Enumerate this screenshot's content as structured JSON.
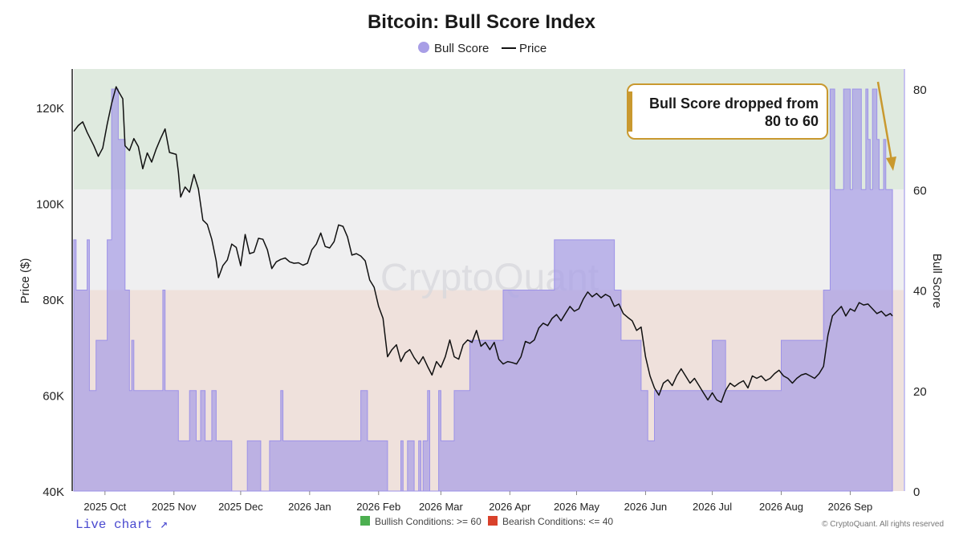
{
  "colors": {
    "bull_fill": "#a89ee6",
    "bull_stroke": "#9d92e8",
    "price_line": "#111111",
    "bullish_zone": "#dfeadf",
    "neutral_zone": "#efeff0",
    "bearish_zone": "#efe1dc",
    "annotation": "#c9992f",
    "legend_green": "#4caf50",
    "legend_red": "#d9412b"
  },
  "footer": {
    "live_chart": "Live chart ↗",
    "copyright": "© CryptoQuant. All rights reserved"
  },
  "chart_data": {
    "type": "area",
    "title": "Bitcoin: Bull Score Index",
    "watermark": "CryptoQuant",
    "legend": [
      {
        "name": "Bull Score",
        "marker": "circle"
      },
      {
        "name": "Price",
        "marker": "line"
      }
    ],
    "zone_legend": [
      "Bullish Conditions: >= 60",
      "Bearish Conditions: <= 40"
    ],
    "annotation": {
      "line1": "Bull Score dropped from",
      "line2": "80 to 60"
    },
    "y_left": {
      "label": "Price ($)",
      "ylim": [
        40000,
        128000
      ],
      "ticks": [
        40000,
        60000,
        80000,
        100000,
        120000
      ],
      "tick_labels": [
        "40K",
        "60K",
        "80K",
        "100K",
        "120K"
      ]
    },
    "y_right": {
      "label": "Bull Score",
      "ylim": [
        0,
        84
      ],
      "ticks": [
        0,
        20,
        40,
        60,
        80
      ],
      "tick_labels": [
        "0",
        "20",
        "40",
        "60",
        "80"
      ]
    },
    "x": {
      "range": [
        "2025-09-17",
        "2026-09-25"
      ],
      "ticks": [
        "2025-10-01",
        "2025-11-01",
        "2025-12-01",
        "2026-01-01",
        "2026-02-01",
        "2026-03-01",
        "2026-04-01",
        "2026-05-01",
        "2026-06-01",
        "2026-07-01",
        "2026-08-01",
        "2026-09-01"
      ],
      "tick_labels": [
        "2025 Oct",
        "2025 Nov",
        "2025 Dec",
        "2026 Jan",
        "2026 Feb",
        "2026 Mar",
        "2026 Apr",
        "2026 May",
        "2026 Jun",
        "2026 Jul",
        "2026 Aug",
        "2026 Sep"
      ]
    },
    "zones": {
      "bullish_min": 60,
      "bearish_max": 40
    },
    "series": [
      {
        "name": "Bull Score",
        "type": "area-step",
        "axis": "right",
        "points": [
          [
            "2025-09-17",
            50
          ],
          [
            "2025-09-18",
            40
          ],
          [
            "2025-09-23",
            50
          ],
          [
            "2025-09-24",
            20
          ],
          [
            "2025-09-27",
            30
          ],
          [
            "2025-10-02",
            50
          ],
          [
            "2025-10-04",
            80
          ],
          [
            "2025-10-07",
            70
          ],
          [
            "2025-10-10",
            40
          ],
          [
            "2025-10-12",
            20
          ],
          [
            "2025-10-13",
            30
          ],
          [
            "2025-10-14",
            20
          ],
          [
            "2025-10-27",
            40
          ],
          [
            "2025-10-28",
            20
          ],
          [
            "2025-11-03",
            10
          ],
          [
            "2025-11-08",
            20
          ],
          [
            "2025-11-11",
            10
          ],
          [
            "2025-11-13",
            20
          ],
          [
            "2025-11-15",
            10
          ],
          [
            "2025-11-18",
            20
          ],
          [
            "2025-11-20",
            10
          ],
          [
            "2025-11-27",
            0
          ],
          [
            "2025-12-04",
            10
          ],
          [
            "2025-12-10",
            0
          ],
          [
            "2025-12-14",
            10
          ],
          [
            "2025-12-19",
            20
          ],
          [
            "2025-12-20",
            10
          ],
          [
            "2026-01-24",
            20
          ],
          [
            "2026-01-27",
            10
          ],
          [
            "2026-02-05",
            0
          ],
          [
            "2026-02-11",
            10
          ],
          [
            "2026-02-12",
            0
          ],
          [
            "2026-02-14",
            10
          ],
          [
            "2026-02-17",
            0
          ],
          [
            "2026-02-19",
            10
          ],
          [
            "2026-02-20",
            0
          ],
          [
            "2026-02-21",
            10
          ],
          [
            "2026-02-23",
            20
          ],
          [
            "2026-02-24",
            0
          ],
          [
            "2026-02-28",
            20
          ],
          [
            "2026-03-01",
            10
          ],
          [
            "2026-03-07",
            20
          ],
          [
            "2026-03-14",
            30
          ],
          [
            "2026-03-29",
            40
          ],
          [
            "2026-04-21",
            50
          ],
          [
            "2026-05-18",
            40
          ],
          [
            "2026-05-21",
            30
          ],
          [
            "2026-05-30",
            20
          ],
          [
            "2026-06-02",
            10
          ],
          [
            "2026-06-05",
            20
          ],
          [
            "2026-07-01",
            30
          ],
          [
            "2026-07-07",
            20
          ],
          [
            "2026-08-01",
            30
          ],
          [
            "2026-08-20",
            40
          ],
          [
            "2026-08-23",
            80
          ],
          [
            "2026-08-25",
            60
          ],
          [
            "2026-08-29",
            80
          ],
          [
            "2026-09-01",
            60
          ],
          [
            "2026-09-02",
            80
          ],
          [
            "2026-09-06",
            60
          ],
          [
            "2026-09-08",
            80
          ],
          [
            "2026-09-09",
            70
          ],
          [
            "2026-09-10",
            60
          ],
          [
            "2026-09-11",
            80
          ],
          [
            "2026-09-13",
            70
          ],
          [
            "2026-09-14",
            60
          ],
          [
            "2026-09-16",
            70
          ],
          [
            "2026-09-17",
            60
          ],
          [
            "2026-09-20",
            60
          ]
        ]
      },
      {
        "name": "Price",
        "type": "line",
        "axis": "left",
        "points": [
          [
            "2025-09-17",
            115000
          ],
          [
            "2025-09-19",
            116200
          ],
          [
            "2025-09-21",
            117000
          ],
          [
            "2025-09-23",
            114800
          ],
          [
            "2025-09-26",
            112000
          ],
          [
            "2025-09-28",
            109800
          ],
          [
            "2025-09-30",
            111500
          ],
          [
            "2025-10-02",
            116500
          ],
          [
            "2025-10-04",
            120800
          ],
          [
            "2025-10-06",
            124300
          ],
          [
            "2025-10-07",
            123400
          ],
          [
            "2025-10-09",
            121800
          ],
          [
            "2025-10-10",
            112000
          ],
          [
            "2025-10-12",
            111000
          ],
          [
            "2025-10-14",
            113500
          ],
          [
            "2025-10-16",
            111800
          ],
          [
            "2025-10-18",
            107200
          ],
          [
            "2025-10-20",
            110500
          ],
          [
            "2025-10-22",
            108600
          ],
          [
            "2025-10-24",
            111300
          ],
          [
            "2025-10-26",
            113500
          ],
          [
            "2025-10-28",
            115500
          ],
          [
            "2025-10-30",
            110600
          ],
          [
            "2025-11-02",
            110200
          ],
          [
            "2025-11-03",
            106500
          ],
          [
            "2025-11-04",
            101300
          ],
          [
            "2025-11-06",
            103400
          ],
          [
            "2025-11-08",
            102300
          ],
          [
            "2025-11-10",
            106000
          ],
          [
            "2025-11-12",
            103000
          ],
          [
            "2025-11-14",
            96500
          ],
          [
            "2025-11-16",
            95600
          ],
          [
            "2025-11-18",
            92500
          ],
          [
            "2025-11-20",
            88000
          ],
          [
            "2025-11-21",
            84500
          ],
          [
            "2025-11-23",
            87000
          ],
          [
            "2025-11-25",
            88200
          ],
          [
            "2025-11-27",
            91500
          ],
          [
            "2025-11-29",
            90800
          ],
          [
            "2025-12-01",
            87000
          ],
          [
            "2025-12-03",
            93500
          ],
          [
            "2025-12-05",
            89500
          ],
          [
            "2025-12-07",
            89800
          ],
          [
            "2025-12-09",
            92700
          ],
          [
            "2025-12-11",
            92500
          ],
          [
            "2025-12-13",
            90300
          ],
          [
            "2025-12-15",
            86400
          ],
          [
            "2025-12-17",
            87800
          ],
          [
            "2025-12-19",
            88300
          ],
          [
            "2025-12-21",
            88600
          ],
          [
            "2025-12-23",
            87800
          ],
          [
            "2025-12-25",
            87500
          ],
          [
            "2025-12-27",
            87600
          ],
          [
            "2025-12-29",
            87100
          ],
          [
            "2025-12-31",
            87500
          ],
          [
            "2026-01-02",
            90300
          ],
          [
            "2026-01-04",
            91500
          ],
          [
            "2026-01-06",
            93800
          ],
          [
            "2026-01-08",
            91000
          ],
          [
            "2026-01-10",
            90700
          ],
          [
            "2026-01-12",
            92000
          ],
          [
            "2026-01-14",
            95500
          ],
          [
            "2026-01-16",
            95200
          ],
          [
            "2026-01-18",
            93000
          ],
          [
            "2026-01-20",
            89200
          ],
          [
            "2026-01-22",
            89500
          ],
          [
            "2026-01-24",
            89000
          ],
          [
            "2026-01-26",
            88000
          ],
          [
            "2026-01-28",
            84000
          ],
          [
            "2026-01-30",
            82500
          ],
          [
            "2026-02-01",
            78500
          ],
          [
            "2026-02-03",
            76000
          ],
          [
            "2026-02-05",
            68000
          ],
          [
            "2026-02-07",
            69500
          ],
          [
            "2026-02-09",
            70500
          ],
          [
            "2026-02-11",
            67000
          ],
          [
            "2026-02-13",
            68800
          ],
          [
            "2026-02-15",
            69500
          ],
          [
            "2026-02-17",
            67800
          ],
          [
            "2026-02-19",
            66500
          ],
          [
            "2026-02-21",
            68000
          ],
          [
            "2026-02-23",
            66000
          ],
          [
            "2026-02-25",
            64200
          ],
          [
            "2026-02-27",
            67000
          ],
          [
            "2026-03-01",
            65800
          ],
          [
            "2026-03-03",
            68000
          ],
          [
            "2026-03-05",
            71500
          ],
          [
            "2026-03-07",
            68000
          ],
          [
            "2026-03-09",
            67500
          ],
          [
            "2026-03-11",
            70500
          ],
          [
            "2026-03-13",
            71500
          ],
          [
            "2026-03-15",
            71000
          ],
          [
            "2026-03-17",
            73500
          ],
          [
            "2026-03-19",
            70200
          ],
          [
            "2026-03-21",
            71000
          ],
          [
            "2026-03-23",
            69500
          ],
          [
            "2026-03-25",
            71000
          ],
          [
            "2026-03-27",
            67500
          ],
          [
            "2026-03-29",
            66500
          ],
          [
            "2026-03-31",
            67000
          ],
          [
            "2026-04-02",
            66800
          ],
          [
            "2026-04-04",
            66500
          ],
          [
            "2026-04-06",
            68000
          ],
          [
            "2026-04-08",
            71200
          ],
          [
            "2026-04-10",
            70800
          ],
          [
            "2026-04-12",
            71500
          ],
          [
            "2026-04-14",
            74000
          ],
          [
            "2026-04-16",
            75000
          ],
          [
            "2026-04-18",
            74500
          ],
          [
            "2026-04-20",
            76000
          ],
          [
            "2026-04-22",
            76800
          ],
          [
            "2026-04-24",
            75500
          ],
          [
            "2026-04-26",
            77000
          ],
          [
            "2026-04-28",
            78500
          ],
          [
            "2026-04-30",
            77500
          ],
          [
            "2026-05-02",
            78000
          ],
          [
            "2026-05-04",
            80000
          ],
          [
            "2026-05-06",
            81500
          ],
          [
            "2026-05-08",
            80500
          ],
          [
            "2026-05-10",
            81200
          ],
          [
            "2026-05-12",
            80300
          ],
          [
            "2026-05-14",
            81000
          ],
          [
            "2026-05-16",
            80500
          ],
          [
            "2026-05-18",
            78500
          ],
          [
            "2026-05-20",
            79000
          ],
          [
            "2026-05-22",
            77000
          ],
          [
            "2026-05-24",
            76200
          ],
          [
            "2026-05-26",
            75500
          ],
          [
            "2026-05-28",
            73500
          ],
          [
            "2026-05-30",
            74200
          ],
          [
            "2026-06-01",
            68000
          ],
          [
            "2026-06-03",
            64000
          ],
          [
            "2026-06-05",
            61500
          ],
          [
            "2026-06-07",
            60000
          ],
          [
            "2026-06-09",
            62500
          ],
          [
            "2026-06-11",
            63200
          ],
          [
            "2026-06-13",
            62000
          ],
          [
            "2026-06-15",
            64000
          ],
          [
            "2026-06-17",
            65500
          ],
          [
            "2026-06-19",
            64000
          ],
          [
            "2026-06-21",
            62500
          ],
          [
            "2026-06-23",
            63500
          ],
          [
            "2026-06-25",
            62000
          ],
          [
            "2026-06-27",
            60500
          ],
          [
            "2026-06-29",
            59000
          ],
          [
            "2026-07-01",
            60500
          ],
          [
            "2026-07-03",
            59000
          ],
          [
            "2026-07-05",
            58500
          ],
          [
            "2026-07-07",
            61000
          ],
          [
            "2026-07-09",
            62500
          ],
          [
            "2026-07-11",
            61800
          ],
          [
            "2026-07-13",
            62500
          ],
          [
            "2026-07-15",
            63000
          ],
          [
            "2026-07-17",
            61500
          ],
          [
            "2026-07-19",
            64000
          ],
          [
            "2026-07-21",
            63500
          ],
          [
            "2026-07-23",
            64000
          ],
          [
            "2026-07-25",
            63000
          ],
          [
            "2026-07-27",
            63500
          ],
          [
            "2026-07-29",
            64500
          ],
          [
            "2026-07-31",
            65200
          ],
          [
            "2026-08-02",
            64000
          ],
          [
            "2026-08-04",
            63500
          ],
          [
            "2026-08-06",
            62500
          ],
          [
            "2026-08-08",
            63500
          ],
          [
            "2026-08-10",
            64200
          ],
          [
            "2026-08-12",
            64500
          ],
          [
            "2026-08-14",
            64000
          ],
          [
            "2026-08-16",
            63500
          ],
          [
            "2026-08-18",
            64500
          ],
          [
            "2026-08-20",
            66000
          ],
          [
            "2026-08-22",
            72500
          ],
          [
            "2026-08-24",
            76500
          ],
          [
            "2026-08-26",
            77500
          ],
          [
            "2026-08-28",
            78500
          ],
          [
            "2026-08-30",
            76500
          ],
          [
            "2026-09-01",
            78000
          ],
          [
            "2026-09-03",
            77500
          ],
          [
            "2026-09-05",
            79300
          ],
          [
            "2026-09-07",
            78800
          ],
          [
            "2026-09-09",
            79000
          ],
          [
            "2026-09-11",
            78000
          ],
          [
            "2026-09-13",
            77000
          ],
          [
            "2026-09-15",
            77500
          ],
          [
            "2026-09-17",
            76500
          ],
          [
            "2026-09-19",
            77000
          ],
          [
            "2026-09-20",
            76500
          ]
        ]
      }
    ]
  }
}
